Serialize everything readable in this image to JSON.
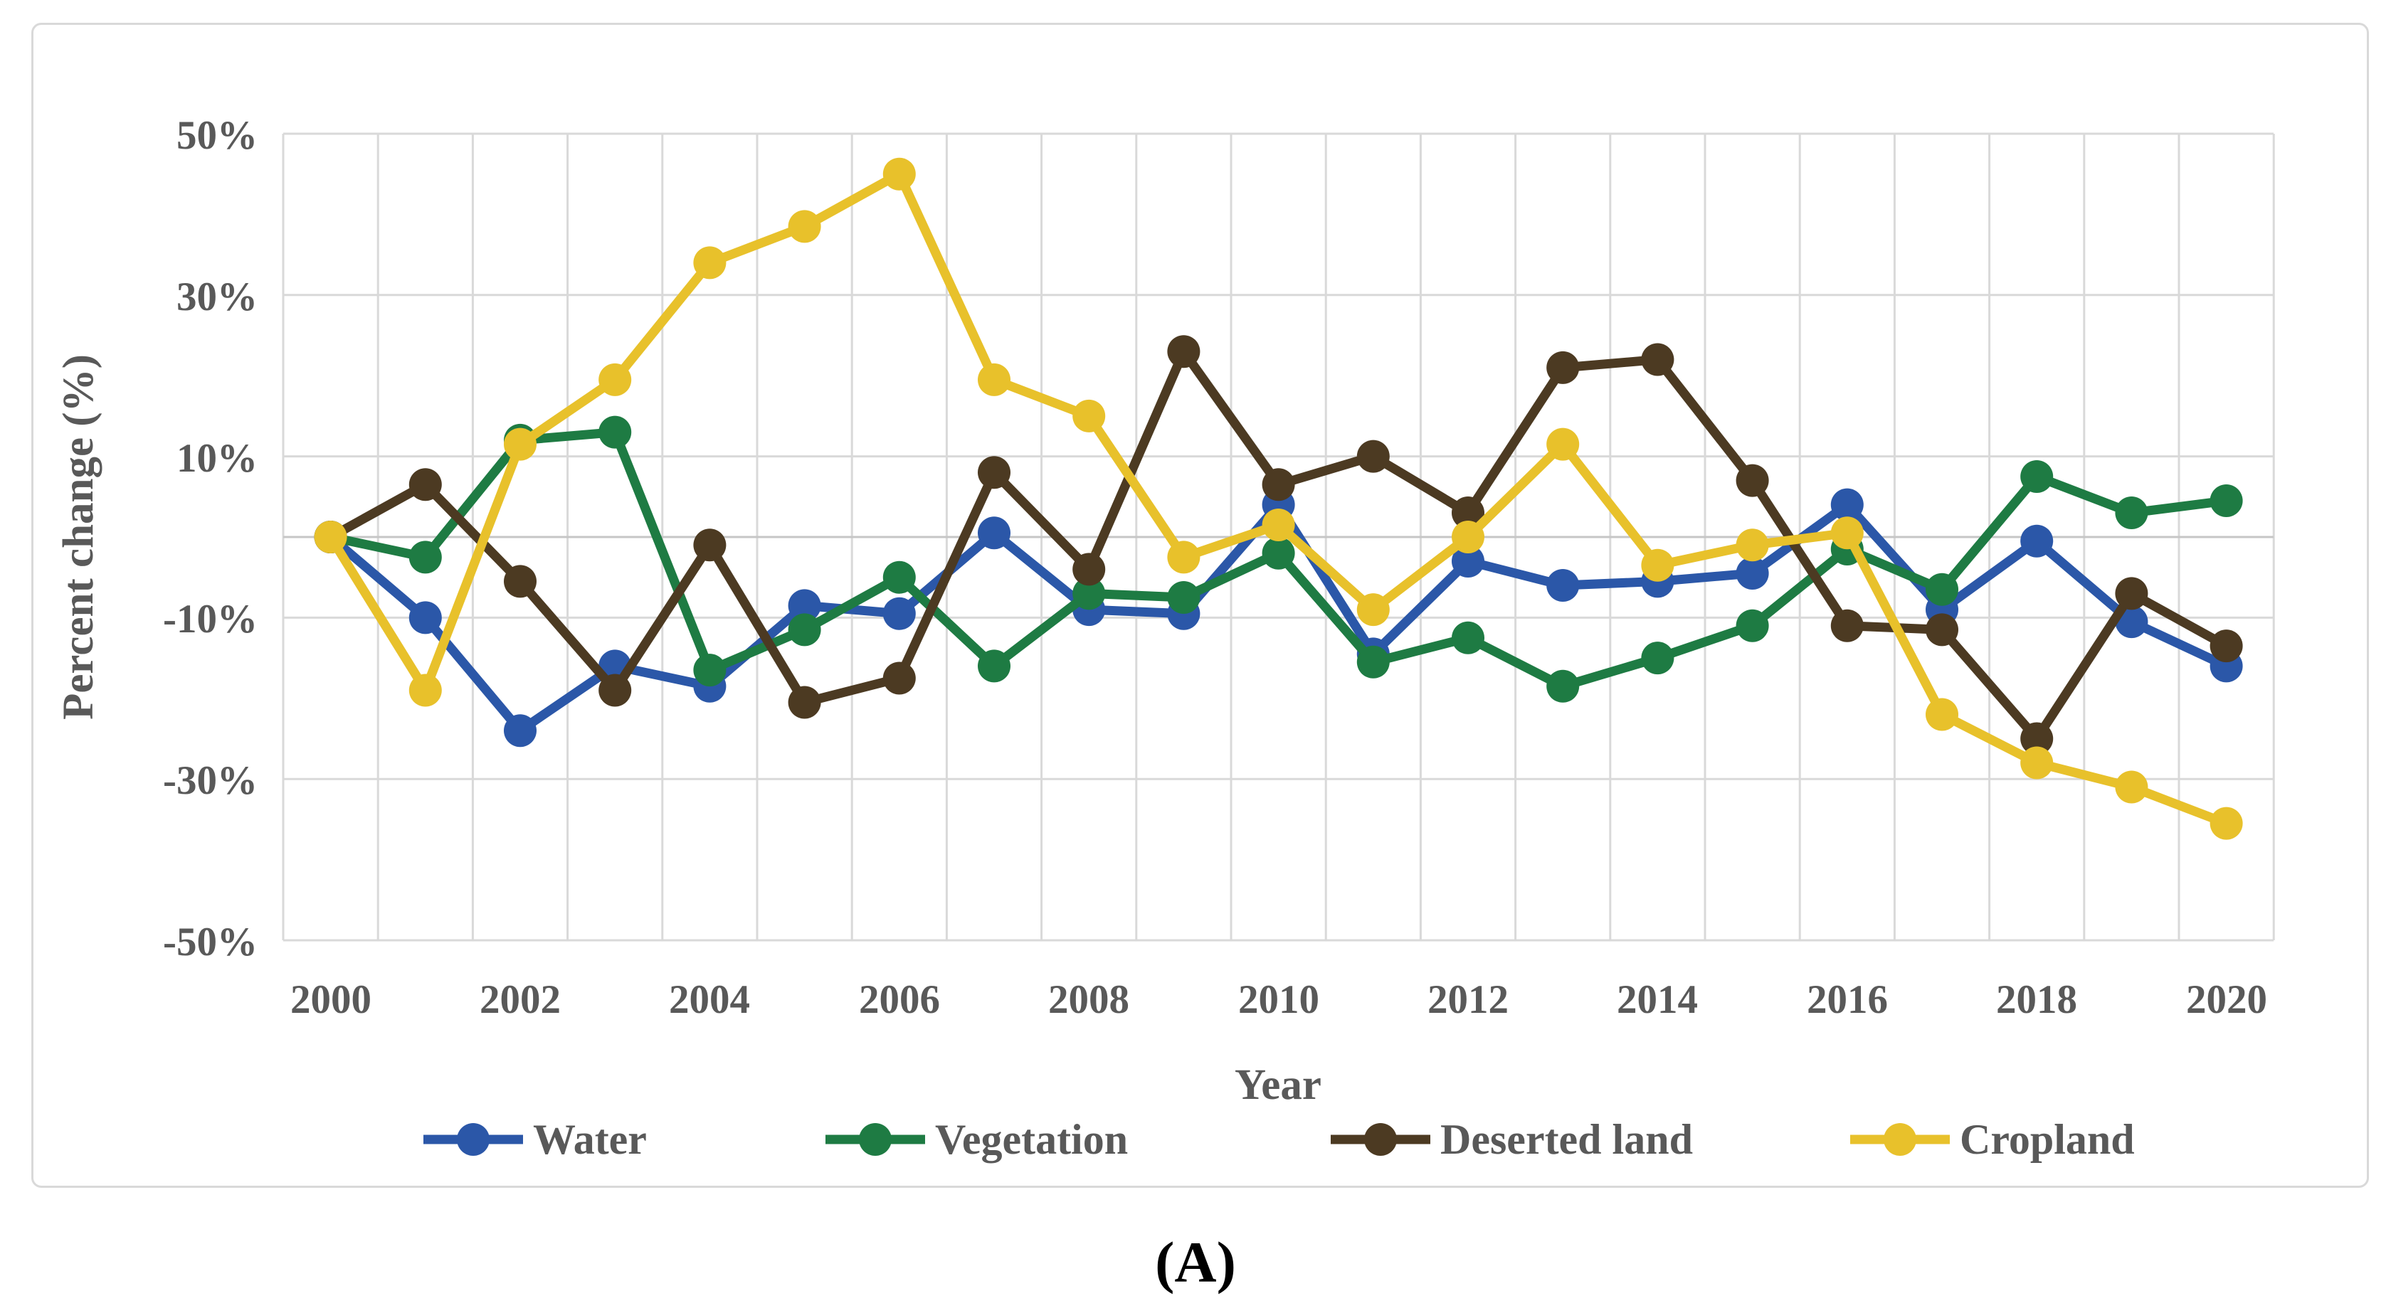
{
  "figure": {
    "caption": "(A)"
  },
  "chart_data": {
    "type": "line",
    "title": "",
    "xlabel": "Year",
    "ylabel": "Percent change (%)",
    "x": [
      2000,
      2001,
      2002,
      2003,
      2004,
      2005,
      2006,
      2007,
      2008,
      2009,
      2010,
      2011,
      2012,
      2013,
      2014,
      2015,
      2016,
      2017,
      2018,
      2019,
      2020
    ],
    "xtick_labels": [
      "2000",
      "2002",
      "2004",
      "2006",
      "2008",
      "2010",
      "2012",
      "2014",
      "2016",
      "2018",
      "2020"
    ],
    "ytick_labels": [
      "50%",
      "30%",
      "10%",
      "-10%",
      "-30%",
      "-50%"
    ],
    "yticks": [
      50,
      30,
      10,
      -10,
      -30,
      -50
    ],
    "ylim": [
      -50,
      50
    ],
    "grid": "vertical line each year, horizontal line each 20%, solid axis line at 0%",
    "legend_position": "bottom",
    "series": [
      {
        "name": "Water",
        "color": "#2B57A8",
        "values": [
          0,
          -10,
          -24,
          -16,
          -18.5,
          -8.5,
          -9.5,
          0.5,
          -9,
          -9.5,
          4,
          -14.5,
          -3,
          -6,
          -5.5,
          -4.5,
          4,
          -9,
          -0.5,
          -10.5,
          -16
        ]
      },
      {
        "name": "Vegetation",
        "color": "#1E7B43",
        "values": [
          0,
          -2.5,
          12,
          13,
          -16.5,
          -11.5,
          -5,
          -16,
          -7,
          -7.5,
          -2,
          -15.5,
          -12.5,
          -18.5,
          -15,
          -11,
          -1.5,
          -6.5,
          7.5,
          3,
          4.5
        ]
      },
      {
        "name": "Deserted land",
        "color": "#4C3A22",
        "values": [
          0,
          6.5,
          -5.5,
          -19,
          -1,
          -20.5,
          -17.5,
          8,
          -4,
          23,
          6.5,
          10,
          3,
          21,
          22,
          7,
          -11,
          -11.5,
          -25,
          -7,
          -13.5
        ]
      },
      {
        "name": "Cropland",
        "color": "#E8C12B",
        "values": [
          0,
          -19,
          11.5,
          19.5,
          34,
          38.5,
          45,
          19.5,
          15,
          -2.5,
          1.5,
          -9,
          0,
          11.5,
          -3.5,
          -1,
          0.5,
          -22,
          -28,
          -31,
          -35.5
        ]
      }
    ],
    "style": {
      "gridline_color": "#D9D9D9",
      "zero_line_color": "#C6C6C6",
      "tick_text_color": "#595959",
      "panel_border_color": "#D9D9D9",
      "line_width": 13,
      "marker_radius": 23
    }
  }
}
